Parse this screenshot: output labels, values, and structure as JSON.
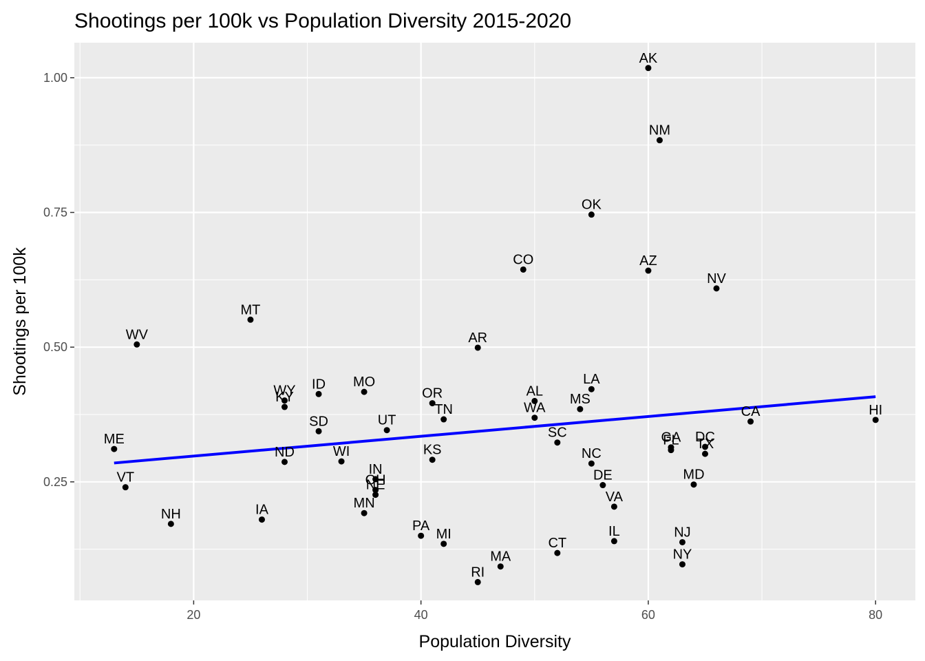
{
  "chart_data": {
    "type": "scatter",
    "title": "Shootings per 100k vs Population Diversity 2015-2020",
    "xlabel": "Population Diversity",
    "ylabel": "Shootings per 100k",
    "xlim": [
      9.5,
      83.5
    ],
    "ylim": [
      0.03,
      1.065
    ],
    "x_ticks": [
      20,
      40,
      60,
      80
    ],
    "x_tick_labels": [
      "20",
      "40",
      "60",
      "80"
    ],
    "y_ticks": [
      0.25,
      0.5,
      0.75,
      1.0
    ],
    "y_tick_labels": [
      "0.25",
      "0.50",
      "0.75",
      "1.00"
    ],
    "grid": true,
    "background": "#EBEBEB",
    "grid_color": "#FFFFFF",
    "point_color": "#000000",
    "trend_line": {
      "type": "linear",
      "color": "#0000FF",
      "x": [
        13,
        80
      ],
      "y": [
        0.285,
        0.408
      ]
    },
    "points": [
      {
        "label": "AK",
        "x": 60,
        "y": 1.018
      },
      {
        "label": "NM",
        "x": 61,
        "y": 0.884
      },
      {
        "label": "OK",
        "x": 55,
        "y": 0.746
      },
      {
        "label": "CO",
        "x": 49,
        "y": 0.644
      },
      {
        "label": "AZ",
        "x": 60,
        "y": 0.642
      },
      {
        "label": "NV",
        "x": 66,
        "y": 0.609
      },
      {
        "label": "MT",
        "x": 25,
        "y": 0.551
      },
      {
        "label": "WV",
        "x": 15,
        "y": 0.505
      },
      {
        "label": "AR",
        "x": 45,
        "y": 0.499
      },
      {
        "label": "LA",
        "x": 55,
        "y": 0.422
      },
      {
        "label": "MO",
        "x": 35,
        "y": 0.417
      },
      {
        "label": "ID",
        "x": 31,
        "y": 0.413
      },
      {
        "label": "WY",
        "x": 28,
        "y": 0.401
      },
      {
        "label": "AL",
        "x": 50,
        "y": 0.4
      },
      {
        "label": "OR",
        "x": 41,
        "y": 0.396
      },
      {
        "label": "KY",
        "x": 28,
        "y": 0.389
      },
      {
        "label": "MS",
        "x": 54,
        "y": 0.385
      },
      {
        "label": "WA",
        "x": 50,
        "y": 0.369
      },
      {
        "label": "TN",
        "x": 42,
        "y": 0.366
      },
      {
        "label": "HI",
        "x": 80,
        "y": 0.365
      },
      {
        "label": "CA",
        "x": 69,
        "y": 0.362
      },
      {
        "label": "UT",
        "x": 37,
        "y": 0.346
      },
      {
        "label": "SD",
        "x": 31,
        "y": 0.344
      },
      {
        "label": "SC",
        "x": 52,
        "y": 0.323
      },
      {
        "label": "GA",
        "x": 62,
        "y": 0.314
      },
      {
        "label": "DC",
        "x": 65,
        "y": 0.315
      },
      {
        "label": "ME",
        "x": 13,
        "y": 0.311
      },
      {
        "label": "FL",
        "x": 62,
        "y": 0.309
      },
      {
        "label": "TX",
        "x": 65,
        "y": 0.302
      },
      {
        "label": "KS",
        "x": 41,
        "y": 0.291
      },
      {
        "label": "WI",
        "x": 33,
        "y": 0.288
      },
      {
        "label": "ND",
        "x": 28,
        "y": 0.287
      },
      {
        "label": "NC",
        "x": 55,
        "y": 0.284
      },
      {
        "label": "IN",
        "x": 36,
        "y": 0.255
      },
      {
        "label": "MD",
        "x": 64,
        "y": 0.245
      },
      {
        "label": "DE",
        "x": 56,
        "y": 0.244
      },
      {
        "label": "VT",
        "x": 14,
        "y": 0.24
      },
      {
        "label": "OH",
        "x": 36,
        "y": 0.235
      },
      {
        "label": "NE",
        "x": 36,
        "y": 0.226
      },
      {
        "label": "VA",
        "x": 57,
        "y": 0.204
      },
      {
        "label": "MN",
        "x": 35,
        "y": 0.192
      },
      {
        "label": "IA",
        "x": 26,
        "y": 0.18
      },
      {
        "label": "NH",
        "x": 18,
        "y": 0.172
      },
      {
        "label": "PA",
        "x": 40,
        "y": 0.15
      },
      {
        "label": "IL",
        "x": 57,
        "y": 0.14
      },
      {
        "label": "NJ",
        "x": 63,
        "y": 0.138
      },
      {
        "label": "MI",
        "x": 42,
        "y": 0.135
      },
      {
        "label": "CT",
        "x": 52,
        "y": 0.118
      },
      {
        "label": "NY",
        "x": 63,
        "y": 0.097
      },
      {
        "label": "MA",
        "x": 47,
        "y": 0.093
      },
      {
        "label": "RI",
        "x": 45,
        "y": 0.064
      }
    ]
  }
}
